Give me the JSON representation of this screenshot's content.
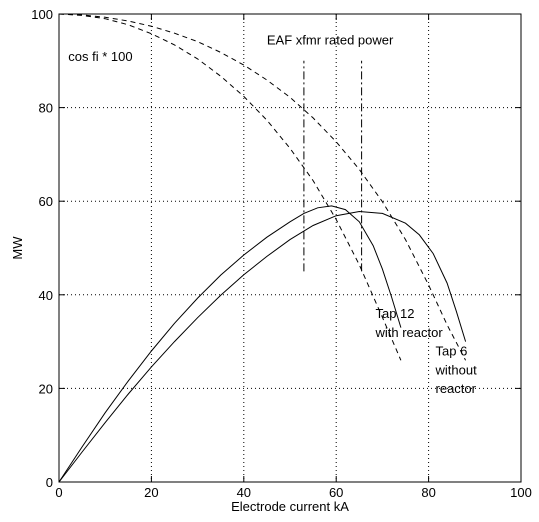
{
  "chart_data": {
    "type": "line",
    "title": "",
    "xlabel": "Electrode current   kA",
    "ylabel": "MW",
    "xlim": [
      0,
      100
    ],
    "ylim": [
      0,
      100
    ],
    "x_ticks": [
      0,
      20,
      40,
      60,
      80,
      100
    ],
    "y_ticks": [
      0,
      20,
      40,
      60,
      80,
      100
    ],
    "grid": true,
    "series": [
      {
        "style": "solid",
        "x": [
          0,
          5,
          10,
          15,
          20,
          25,
          30,
          35,
          40,
          45,
          50,
          53,
          56,
          59,
          62,
          65,
          68,
          70,
          72,
          74
        ],
        "y": [
          0,
          7.5,
          14.8,
          21.6,
          28,
          33.9,
          39.3,
          44.2,
          48.5,
          52.3,
          55.6,
          57.4,
          58.6,
          59,
          58.2,
          55.6,
          50.5,
          45.5,
          39.5,
          33
        ]
      },
      {
        "style": "solid",
        "x": [
          0,
          5,
          10,
          15,
          20,
          25,
          30,
          35,
          40,
          45,
          50,
          55,
          60,
          65,
          70,
          75,
          78,
          81,
          84,
          86,
          88
        ],
        "y": [
          0,
          6.4,
          12.7,
          18.8,
          24.6,
          30,
          35.1,
          39.9,
          44.3,
          48.2,
          51.8,
          54.8,
          56.9,
          57.8,
          57.4,
          55.3,
          52.8,
          48.8,
          42.5,
          36.5,
          30
        ]
      },
      {
        "style": "dashed",
        "x": [
          0,
          5,
          10,
          15,
          20,
          25,
          30,
          35,
          40,
          45,
          50,
          55,
          60,
          65,
          70,
          74
        ],
        "y": [
          100,
          99.7,
          99,
          97.7,
          95.8,
          93.4,
          90.4,
          86.7,
          82.4,
          77.3,
          71.3,
          64.4,
          56.1,
          46.4,
          35.2,
          26
        ]
      },
      {
        "style": "dashed",
        "x": [
          0,
          5,
          10,
          15,
          20,
          25,
          30,
          35,
          40,
          45,
          50,
          55,
          60,
          65,
          70,
          75,
          80,
          84,
          88
        ],
        "y": [
          100,
          99.8,
          99.3,
          98.5,
          97.4,
          95.9,
          94.1,
          91.8,
          89.1,
          85.9,
          82.2,
          77.8,
          72.7,
          66.8,
          59.9,
          51.8,
          42.1,
          33.6,
          26
        ]
      },
      {
        "style": "dashdot",
        "x": [
          53,
          53
        ],
        "y": [
          45,
          90
        ]
      },
      {
        "style": "dashdot",
        "x": [
          65.5,
          65.5
        ],
        "y": [
          45,
          90
        ]
      }
    ],
    "annotations": [
      {
        "text": "cos fi * 100",
        "x": 2,
        "y": 90
      },
      {
        "text": "EAF xfmr rated power",
        "x": 45,
        "y": 93.5
      },
      {
        "text": "Tap 12",
        "x": 68.5,
        "y": 35
      },
      {
        "text": "with reactor",
        "x": 68.5,
        "y": 31
      },
      {
        "text": "Tap 6",
        "x": 81.5,
        "y": 27
      },
      {
        "text": "without",
        "x": 81.5,
        "y": 23
      },
      {
        "text": "reactor",
        "x": 81.5,
        "y": 19
      }
    ]
  }
}
